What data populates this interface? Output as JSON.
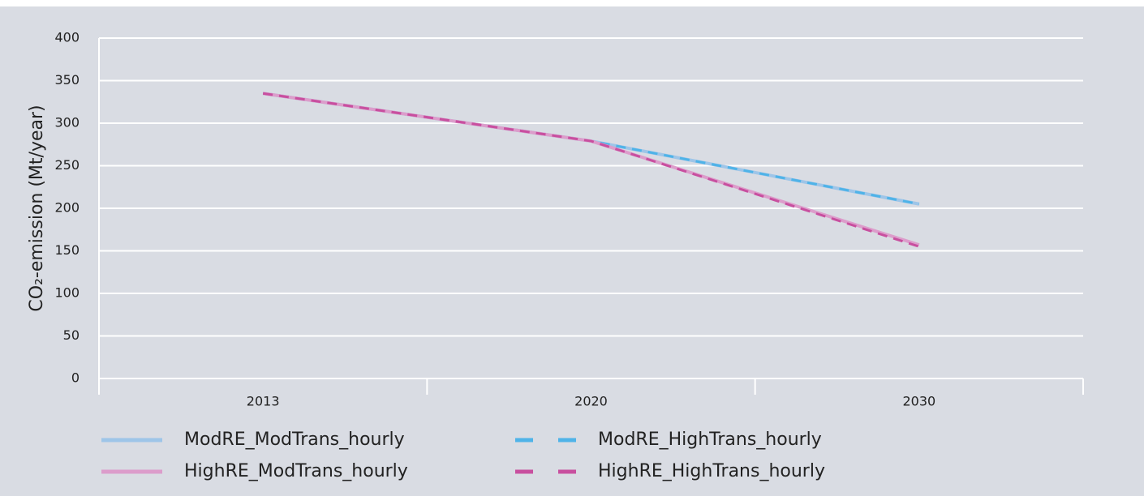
{
  "chart_data": {
    "type": "line",
    "y_label": "CO₂-emission (Mt/year)",
    "categories": [
      "2013",
      "2020",
      "2030"
    ],
    "series": [
      {
        "name": "ModRE_ModTrans_hourly",
        "color": "#9ec5e8",
        "dashed": false,
        "values": [
          335,
          279,
          205
        ]
      },
      {
        "name": "ModRE_HighTrans_hourly",
        "color": "#4fb3e8",
        "dashed": true,
        "values": [
          335,
          279,
          205
        ]
      },
      {
        "name": "HighRE_ModTrans_hourly",
        "color": "#dc9dcb",
        "dashed": false,
        "values": [
          335,
          279,
          157
        ]
      },
      {
        "name": "HighRE_HighTrans_hourly",
        "color": "#c84f9f",
        "dashed": true,
        "values": [
          335,
          279,
          155
        ]
      }
    ],
    "ylim": [
      0,
      400
    ],
    "yticks": [
      0,
      50,
      100,
      150,
      200,
      250,
      300,
      350,
      400
    ],
    "grid": true
  }
}
